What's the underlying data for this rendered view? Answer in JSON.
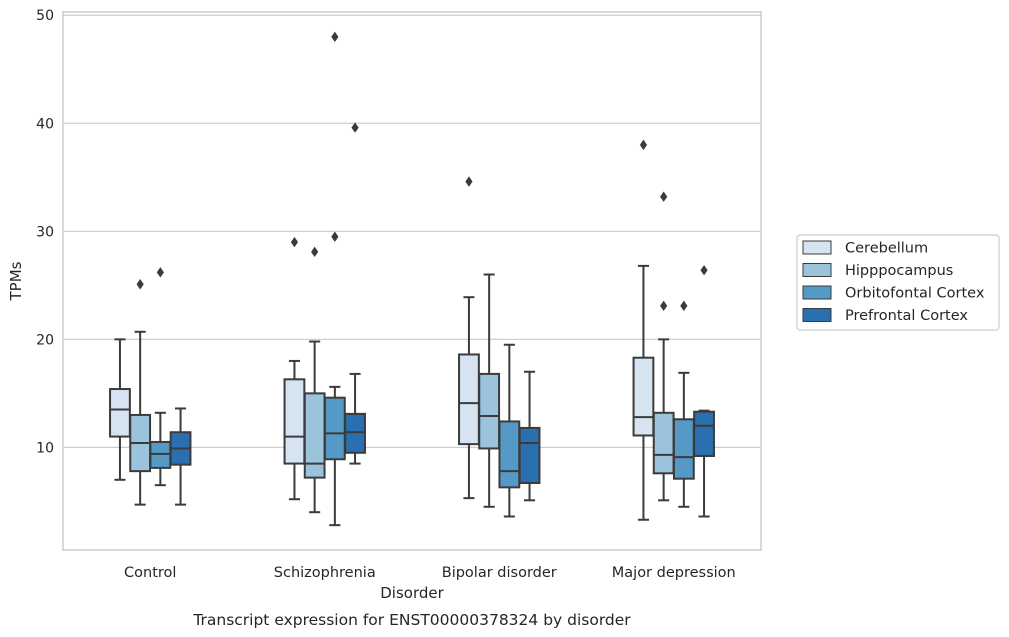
{
  "chart_data": {
    "type": "boxplot",
    "caption": "Transcript expression for ENST00000378324 by disorder",
    "xlabel": "Disorder",
    "ylabel": "TPMs",
    "ylim": [
      0.5,
      50.3
    ],
    "yticks": [
      10,
      20,
      30,
      40,
      50
    ],
    "grid": true,
    "legend_position": "right",
    "categories": [
      "Control",
      "Schizophrenia",
      "Bipolar disorder",
      "Major depression"
    ],
    "series": [
      {
        "name": "Cerebellum",
        "color": "#d6e4f1",
        "boxes": [
          {
            "whislo": 7.0,
            "q1": 11.0,
            "med": 13.5,
            "q3": 15.4,
            "whishi": 20.0,
            "fliers": []
          },
          {
            "whislo": 5.2,
            "q1": 8.5,
            "med": 11.0,
            "q3": 16.3,
            "whishi": 18.0,
            "fliers": [
              29.0
            ]
          },
          {
            "whislo": 5.3,
            "q1": 10.3,
            "med": 14.1,
            "q3": 18.6,
            "whishi": 23.9,
            "fliers": [
              34.6
            ]
          },
          {
            "whislo": 3.3,
            "q1": 11.1,
            "med": 12.8,
            "q3": 18.3,
            "whishi": 26.8,
            "fliers": [
              38.0
            ]
          }
        ]
      },
      {
        "name": "Hipppocampus",
        "color": "#9cc3dc",
        "boxes": [
          {
            "whislo": 4.7,
            "q1": 7.8,
            "med": 10.4,
            "q3": 13.0,
            "whishi": 20.7,
            "fliers": [
              25.1
            ]
          },
          {
            "whislo": 4.0,
            "q1": 7.2,
            "med": 8.5,
            "q3": 15.0,
            "whishi": 19.8,
            "fliers": [
              28.1
            ]
          },
          {
            "whislo": 4.5,
            "q1": 9.9,
            "med": 12.9,
            "q3": 16.8,
            "whishi": 26.0,
            "fliers": []
          },
          {
            "whislo": 5.1,
            "q1": 7.6,
            "med": 9.3,
            "q3": 13.2,
            "whishi": 20.0,
            "fliers": [
              23.1,
              33.2
            ]
          }
        ]
      },
      {
        "name": "Orbitofontal Cortex",
        "color": "#5599c7",
        "boxes": [
          {
            "whislo": 6.5,
            "q1": 8.1,
            "med": 9.4,
            "q3": 10.5,
            "whishi": 13.2,
            "fliers": [
              26.2
            ]
          },
          {
            "whislo": 2.8,
            "q1": 8.9,
            "med": 11.3,
            "q3": 14.6,
            "whishi": 15.6,
            "fliers": [
              29.5,
              48.0
            ]
          },
          {
            "whislo": 3.6,
            "q1": 6.3,
            "med": 7.8,
            "q3": 12.4,
            "whishi": 19.5,
            "fliers": []
          },
          {
            "whislo": 4.5,
            "q1": 7.1,
            "med": 9.1,
            "q3": 12.6,
            "whishi": 16.9,
            "fliers": [
              23.1
            ]
          }
        ]
      },
      {
        "name": "Prefrontal Cortex",
        "color": "#2a6faf",
        "boxes": [
          {
            "whislo": 4.7,
            "q1": 8.4,
            "med": 9.9,
            "q3": 11.4,
            "whishi": 13.6,
            "fliers": []
          },
          {
            "whislo": 8.5,
            "q1": 9.5,
            "med": 11.4,
            "q3": 13.1,
            "whishi": 16.8,
            "fliers": [
              39.6
            ]
          },
          {
            "whislo": 5.1,
            "q1": 6.7,
            "med": 10.4,
            "q3": 11.8,
            "whishi": 17.0,
            "fliers": []
          },
          {
            "whislo": 3.6,
            "q1": 9.2,
            "med": 12.0,
            "q3": 13.3,
            "whishi": 13.4,
            "fliers": [
              26.4
            ]
          }
        ]
      }
    ]
  }
}
